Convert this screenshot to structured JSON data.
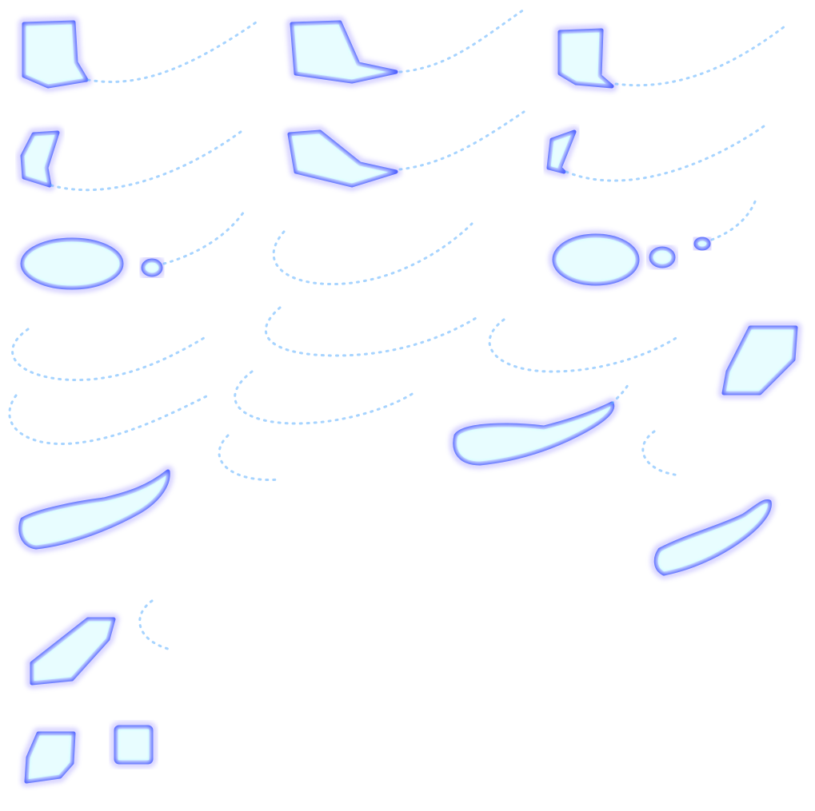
{
  "sheet": {
    "background": "#ffffff",
    "palette": {
      "core": "#f4ffff",
      "inner": "#7ef2ff",
      "edge": "#4a5cff",
      "halo": "#8a7dff",
      "dust": "#5fb0ff"
    },
    "sprites": [
      {
        "name": "sprite-flame-1",
        "icon": "energy-blob-icon"
      },
      {
        "name": "sprite-flame-2",
        "icon": "energy-blob-icon"
      },
      {
        "name": "sprite-flame-3",
        "icon": "energy-blob-icon"
      },
      {
        "name": "sprite-flame-4",
        "icon": "energy-blob-icon"
      },
      {
        "name": "sprite-flame-5",
        "icon": "energy-blob-icon"
      },
      {
        "name": "sprite-flame-6",
        "icon": "energy-blob-icon"
      },
      {
        "name": "sprite-oval-1",
        "icon": "energy-blob-icon"
      },
      {
        "name": "sprite-spark-trail-1",
        "icon": "sparkle-trail-icon"
      },
      {
        "name": "sprite-oval-2",
        "icon": "energy-blob-icon"
      },
      {
        "name": "sprite-spark-trail-2",
        "icon": "sparkle-trail-icon"
      },
      {
        "name": "sprite-spark-trail-3",
        "icon": "sparkle-trail-icon"
      },
      {
        "name": "sprite-spark-trail-4",
        "icon": "sparkle-trail-icon"
      },
      {
        "name": "sprite-shard-1",
        "icon": "energy-blob-icon"
      },
      {
        "name": "sprite-comet-1",
        "icon": "energy-blob-icon"
      },
      {
        "name": "sprite-comet-2",
        "icon": "energy-blob-icon"
      },
      {
        "name": "sprite-comet-3",
        "icon": "energy-blob-icon"
      },
      {
        "name": "sprite-shard-2",
        "icon": "energy-blob-icon"
      },
      {
        "name": "sprite-shard-3",
        "icon": "energy-blob-icon"
      },
      {
        "name": "sprite-square",
        "icon": "energy-blob-icon"
      }
    ]
  }
}
